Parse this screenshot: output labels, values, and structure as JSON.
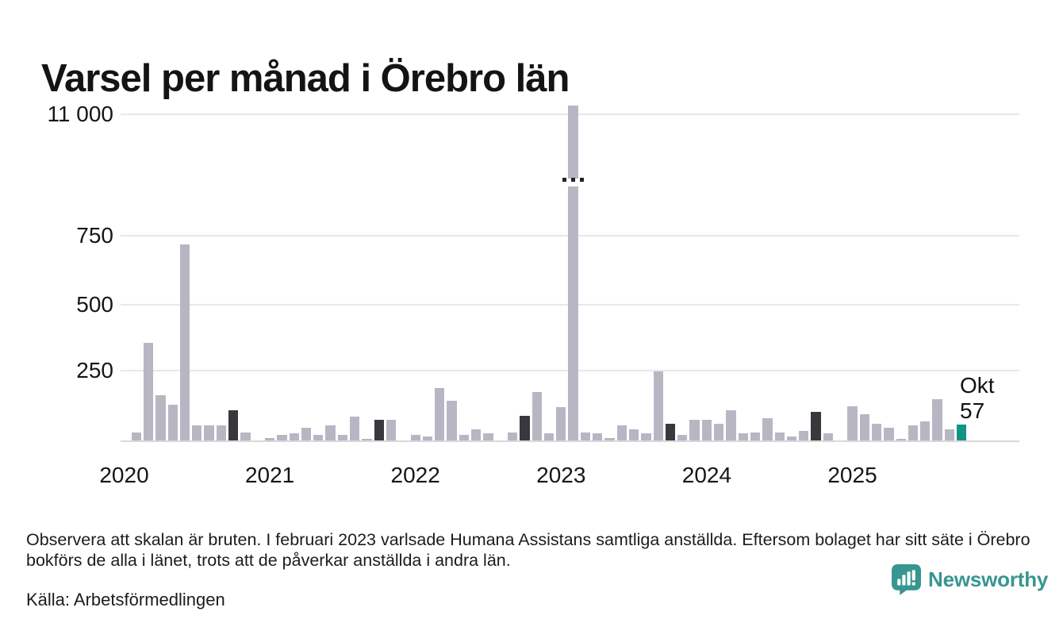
{
  "page": {
    "title": "Varsel per månad i Örebro län",
    "footnote": "Observera att skalan är bruten. I februari 2023 varlsade Humana Assistans samtliga anställda. Eftersom bolaget har sitt säte i Örebro bokförs de alla i länet, trots att de påverkar anställda i andra län.",
    "source": "Källa: Arbetsförmedlingen",
    "brand": "Newsworthy"
  },
  "colors": {
    "bar_base": "#b9b6c4",
    "bar_dark": "#39393d",
    "bar_accent": "#149285",
    "grid": "#e7e7ec",
    "axis": "#d8d8de",
    "brand": "#37968f"
  },
  "chart_data": {
    "type": "bar",
    "title": "Varsel per månad i Örebro län",
    "xlabel": "",
    "ylabel": "",
    "grid": "horizontal",
    "legend": "none",
    "broken_scale": true,
    "break_between": [
      750,
      11000
    ],
    "break_marker": "· · ·",
    "y_axis": {
      "ticks": [
        {
          "label": "11 000",
          "value": 11000
        },
        {
          "label": "750",
          "value": 750
        },
        {
          "label": "500",
          "value": 500
        },
        {
          "label": "250",
          "value": 250
        }
      ]
    },
    "x_axis": {
      "tick_labels": [
        "2020",
        "2021",
        "2022",
        "2023",
        "2024",
        "2025"
      ]
    },
    "annotation": {
      "month_label": "Okt",
      "value_label": "57"
    },
    "style_legend": {
      "base": "light gray month",
      "d": "dark highlighted October",
      "a": "teal latest month",
      "b": "broken-scale outlier"
    },
    "series": [
      {
        "m": "2020-01",
        "v": 0
      },
      {
        "m": "2020-02",
        "v": 30
      },
      {
        "m": "2020-03",
        "v": 355
      },
      {
        "m": "2020-04",
        "v": 165
      },
      {
        "m": "2020-05",
        "v": 130
      },
      {
        "m": "2020-06",
        "v": 710
      },
      {
        "m": "2020-07",
        "v": 55
      },
      {
        "m": "2020-08",
        "v": 55
      },
      {
        "m": "2020-09",
        "v": 55
      },
      {
        "m": "2020-10",
        "v": 110,
        "s": "d"
      },
      {
        "m": "2020-11",
        "v": 30
      },
      {
        "m": "2020-12",
        "v": 0
      },
      {
        "m": "2021-01",
        "v": 10
      },
      {
        "m": "2021-02",
        "v": 20
      },
      {
        "m": "2021-03",
        "v": 25
      },
      {
        "m": "2021-04",
        "v": 45
      },
      {
        "m": "2021-05",
        "v": 20
      },
      {
        "m": "2021-06",
        "v": 55
      },
      {
        "m": "2021-07",
        "v": 20
      },
      {
        "m": "2021-08",
        "v": 85
      },
      {
        "m": "2021-09",
        "v": 5
      },
      {
        "m": "2021-10",
        "v": 75,
        "s": "d"
      },
      {
        "m": "2021-11",
        "v": 75
      },
      {
        "m": "2021-12",
        "v": 0
      },
      {
        "m": "2022-01",
        "v": 20
      },
      {
        "m": "2022-02",
        "v": 15
      },
      {
        "m": "2022-03",
        "v": 190
      },
      {
        "m": "2022-04",
        "v": 145
      },
      {
        "m": "2022-05",
        "v": 20
      },
      {
        "m": "2022-06",
        "v": 40
      },
      {
        "m": "2022-07",
        "v": 25
      },
      {
        "m": "2022-08",
        "v": 0
      },
      {
        "m": "2022-09",
        "v": 30
      },
      {
        "m": "2022-10",
        "v": 90,
        "s": "d"
      },
      {
        "m": "2022-11",
        "v": 175
      },
      {
        "m": "2022-12",
        "v": 25
      },
      {
        "m": "2023-01",
        "v": 120
      },
      {
        "m": "2023-02",
        "v": 11030,
        "s": "b"
      },
      {
        "m": "2023-03",
        "v": 30
      },
      {
        "m": "2023-04",
        "v": 25
      },
      {
        "m": "2023-05",
        "v": 10
      },
      {
        "m": "2023-06",
        "v": 55
      },
      {
        "m": "2023-07",
        "v": 40
      },
      {
        "m": "2023-08",
        "v": 25
      },
      {
        "m": "2023-09",
        "v": 250
      },
      {
        "m": "2023-10",
        "v": 60,
        "s": "d"
      },
      {
        "m": "2023-11",
        "v": 20
      },
      {
        "m": "2023-12",
        "v": 75
      },
      {
        "m": "2024-01",
        "v": 75
      },
      {
        "m": "2024-02",
        "v": 60
      },
      {
        "m": "2024-03",
        "v": 110
      },
      {
        "m": "2024-04",
        "v": 25
      },
      {
        "m": "2024-05",
        "v": 30
      },
      {
        "m": "2024-06",
        "v": 80
      },
      {
        "m": "2024-07",
        "v": 30
      },
      {
        "m": "2024-08",
        "v": 15
      },
      {
        "m": "2024-09",
        "v": 35
      },
      {
        "m": "2024-10",
        "v": 105,
        "s": "d"
      },
      {
        "m": "2024-11",
        "v": 25
      },
      {
        "m": "2024-12",
        "v": 0
      },
      {
        "m": "2025-01",
        "v": 125
      },
      {
        "m": "2025-02",
        "v": 95
      },
      {
        "m": "2025-03",
        "v": 60
      },
      {
        "m": "2025-04",
        "v": 45
      },
      {
        "m": "2025-05",
        "v": 5
      },
      {
        "m": "2025-06",
        "v": 55
      },
      {
        "m": "2025-07",
        "v": 70
      },
      {
        "m": "2025-08",
        "v": 150
      },
      {
        "m": "2025-09",
        "v": 40
      },
      {
        "m": "2025-10",
        "v": 57,
        "s": "a"
      }
    ]
  }
}
